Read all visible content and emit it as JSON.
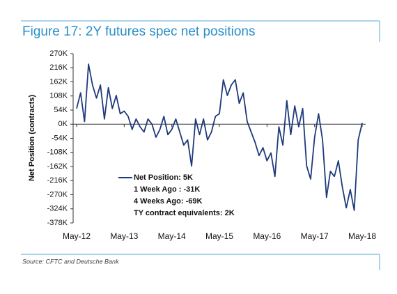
{
  "chart_data": {
    "type": "line",
    "title": "Figure 17: 2Y futures spec net positions",
    "y_label": "Net Position (contracts)",
    "source": "Source: CFTC and Deutsche Bank",
    "categories": [
      "May-12",
      null,
      null,
      null,
      null,
      null,
      null,
      null,
      null,
      null,
      null,
      null,
      "May-13",
      null,
      null,
      null,
      null,
      null,
      null,
      null,
      null,
      null,
      null,
      null,
      "May-14",
      null,
      null,
      null,
      null,
      null,
      null,
      null,
      null,
      null,
      null,
      null,
      "May-15",
      null,
      null,
      null,
      null,
      null,
      null,
      null,
      null,
      null,
      null,
      null,
      "May-16",
      null,
      null,
      null,
      null,
      null,
      null,
      null,
      null,
      null,
      null,
      null,
      "May-17",
      null,
      null,
      null,
      null,
      null,
      null,
      null,
      null,
      null,
      null,
      null,
      "May-18"
    ],
    "series": [
      {
        "name": "Net Position: 5K",
        "color": "#1f3a7a",
        "values": [
          60,
          120,
          10,
          230,
          150,
          100,
          150,
          20,
          140,
          60,
          110,
          40,
          50,
          30,
          -20,
          20,
          -10,
          -30,
          20,
          0,
          -50,
          -20,
          30,
          -40,
          -20,
          20,
          -30,
          -80,
          -60,
          -160,
          20,
          -40,
          20,
          -60,
          -30,
          30,
          40,
          170,
          110,
          150,
          170,
          80,
          120,
          10,
          -30,
          -70,
          -120,
          -90,
          -140,
          -110,
          -200,
          -10,
          -80,
          90,
          -40,
          70,
          -10,
          60,
          -160,
          -210,
          -50,
          40,
          -60,
          -280,
          -180,
          -200,
          -140,
          -240,
          -320,
          -250,
          -330,
          -60,
          5
        ]
      }
    ],
    "annotations": [
      "1 Week Ago : -31K",
      "4 Weeks Ago: -69K",
      "TY contract equivalents: 2K"
    ],
    "ylim": [
      -378,
      270
    ],
    "yticks": [
      {
        "value": 270,
        "label": "270K"
      },
      {
        "value": 216,
        "label": "216K"
      },
      {
        "value": 162,
        "label": "162K"
      },
      {
        "value": 108,
        "label": "108K"
      },
      {
        "value": 54,
        "label": "54K"
      },
      {
        "value": 0,
        "label": "0K"
      },
      {
        "value": -54,
        "label": "-54K"
      },
      {
        "value": -108,
        "label": "-108K"
      },
      {
        "value": -162,
        "label": "-162K"
      },
      {
        "value": -216,
        "label": "-216K"
      },
      {
        "value": -270,
        "label": "-270K"
      },
      {
        "value": -324,
        "label": "-324K"
      },
      {
        "value": -378,
        "label": "-378K"
      }
    ],
    "grid": false
  }
}
